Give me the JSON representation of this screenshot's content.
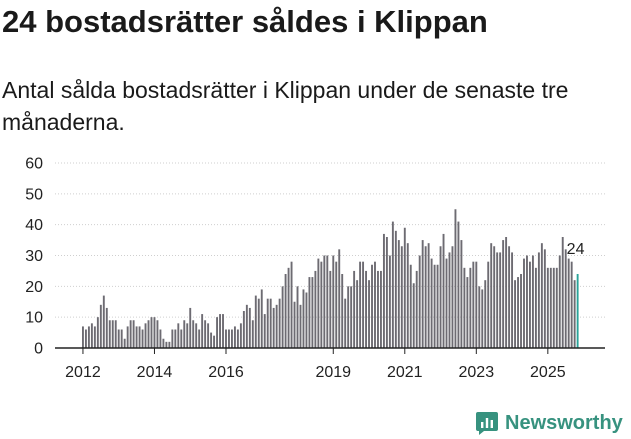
{
  "header": {
    "title": "24 bostadsrätter såldes i Klippan",
    "subtitle": "Antal sålda bostadsrätter i Klippan under de senaste tre månaderna."
  },
  "colors": {
    "bar": "#6d6b72",
    "highlight": "#2aa39a",
    "axis": "#222222",
    "grid": "#cfcfcf",
    "brand": "#37927f"
  },
  "brand": {
    "name": "Newsworthy",
    "icon": "chart-bubble-icon"
  },
  "chart_data": {
    "type": "bar",
    "title": "24 bostadsrätter såldes i Klippan",
    "xlabel": "",
    "ylabel": "",
    "ylim": [
      0,
      60
    ],
    "yticks": [
      0,
      10,
      20,
      30,
      40,
      50,
      60
    ],
    "xticks": [
      {
        "label": "2012",
        "index": 0
      },
      {
        "label": "2014",
        "index": 24
      },
      {
        "label": "2016",
        "index": 48
      },
      {
        "label": "2019",
        "index": 84
      },
      {
        "label": "2021",
        "index": 108
      },
      {
        "label": "2023",
        "index": 132
      },
      {
        "label": "2025",
        "index": 156
      }
    ],
    "start": "2012-01",
    "values": [
      7,
      6,
      7,
      8,
      7,
      10,
      14,
      17,
      13,
      9,
      9,
      9,
      6,
      6,
      3,
      7,
      9,
      9,
      7,
      7,
      6,
      8,
      9,
      10,
      10,
      9,
      6,
      3,
      2,
      2,
      6,
      6,
      8,
      6,
      9,
      8,
      13,
      9,
      8,
      6,
      11,
      9,
      8,
      5,
      4,
      10,
      11,
      11,
      6,
      6,
      6,
      7,
      6,
      8,
      12,
      14,
      13,
      9,
      17,
      16,
      19,
      11,
      16,
      16,
      13,
      14,
      16,
      20,
      24,
      26,
      28,
      15,
      20,
      14,
      19,
      18,
      23,
      23,
      25,
      29,
      28,
      30,
      30,
      25,
      30,
      28,
      32,
      24,
      16,
      20,
      20,
      25,
      22,
      28,
      28,
      25,
      22,
      27,
      28,
      25,
      25,
      37,
      36,
      30,
      41,
      38,
      35,
      33,
      39,
      34,
      27,
      21,
      25,
      30,
      35,
      33,
      34,
      29,
      27,
      27,
      33,
      37,
      29,
      31,
      33,
      45,
      41,
      35,
      26,
      23,
      26,
      28,
      28,
      20,
      19,
      22,
      28,
      34,
      33,
      31,
      31,
      35,
      36,
      33,
      31,
      22,
      23,
      24,
      29,
      30,
      28,
      30,
      26,
      31,
      34,
      32,
      26,
      26,
      26,
      26,
      30,
      36,
      32,
      29,
      28,
      22,
      24
    ],
    "highlight_last": true,
    "data_labels": [
      {
        "index": 166,
        "value": 24,
        "label": "24"
      }
    ]
  }
}
